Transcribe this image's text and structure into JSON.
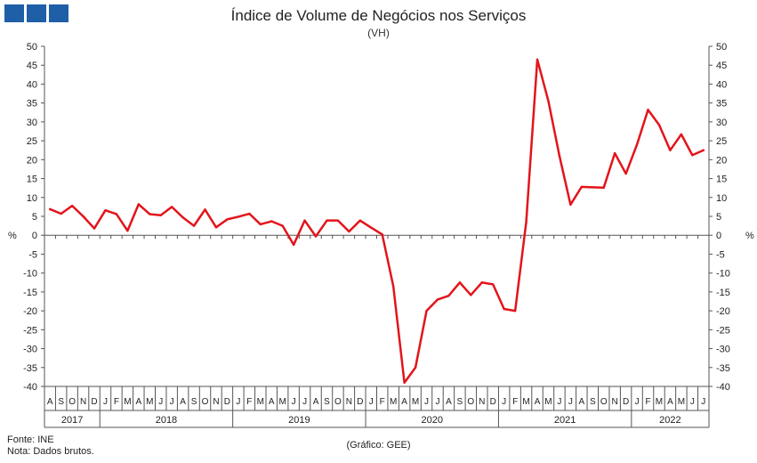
{
  "logo_colors": [
    "#1f5fa8"
  ],
  "header": {
    "title": "Índice de Volume de Negócios nos Serviços",
    "subtitle": "(VH)"
  },
  "footer": {
    "source": "Fonte: INE",
    "note": "Nota: Dados brutos.",
    "credit": "(Gráfico: GEE)"
  },
  "chart_data": {
    "type": "line",
    "title": "Índice de Volume de Negócios nos Serviços",
    "subtitle": "(VH)",
    "ylabel_left": "%",
    "ylabel_right": "%",
    "ylim": [
      -40,
      50
    ],
    "yticks": [
      50,
      45,
      40,
      35,
      30,
      25,
      20,
      15,
      10,
      5,
      0,
      -5,
      -10,
      -15,
      -20,
      -25,
      -30,
      -35,
      -40
    ],
    "grid": false,
    "line_color": "#e3141b",
    "month_labels": [
      "A",
      "S",
      "O",
      "N",
      "D",
      "J",
      "F",
      "M",
      "A",
      "M",
      "J",
      "J",
      "A",
      "S",
      "O",
      "N",
      "D",
      "J",
      "F",
      "M",
      "A",
      "M",
      "J",
      "J",
      "A",
      "S",
      "O",
      "N",
      "D",
      "J",
      "F",
      "M",
      "A",
      "M",
      "J",
      "J",
      "A",
      "S",
      "O",
      "N",
      "D",
      "J",
      "F",
      "M",
      "A",
      "M",
      "J",
      "J",
      "A",
      "S",
      "O",
      "N",
      "D",
      "J",
      "F",
      "M",
      "A",
      "M",
      "J",
      "J"
    ],
    "year_groups": [
      {
        "year": "2017",
        "start": 0,
        "count": 5
      },
      {
        "year": "2018",
        "start": 5,
        "count": 12
      },
      {
        "year": "2019",
        "start": 17,
        "count": 12
      },
      {
        "year": "2020",
        "start": 29,
        "count": 12
      },
      {
        "year": "2021",
        "start": 41,
        "count": 12
      },
      {
        "year": "2022",
        "start": 53,
        "count": 7
      }
    ],
    "series": [
      {
        "values": [
          6.9,
          5.7,
          7.8,
          5.0,
          1.8,
          6.6,
          5.6,
          1.2,
          8.2,
          5.6,
          5.3,
          7.5,
          4.7,
          2.5,
          6.8,
          2.1,
          4.2,
          4.9,
          5.7,
          2.9,
          3.7,
          2.5,
          -2.5,
          3.9,
          -0.3,
          3.9,
          3.9,
          1.0,
          3.9,
          2.0,
          0.2,
          -13.5,
          -39.0,
          -35.0,
          -20.0,
          -17.0,
          -16.0,
          -12.5,
          -15.8,
          -12.5,
          -13.0,
          -19.5,
          -20.0,
          3.5,
          46.5,
          35.5,
          21.0,
          8.1,
          12.8,
          12.7,
          12.6,
          21.7,
          16.3,
          24.0,
          33.2,
          29.2,
          22.5,
          26.7,
          21.2,
          22.5
        ]
      }
    ]
  }
}
